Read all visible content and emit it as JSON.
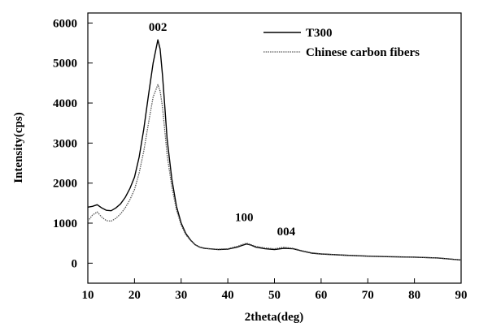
{
  "chart_data": {
    "type": "line",
    "title": "",
    "xlabel": "2theta(deg)",
    "ylabel": "Intensity(cps)",
    "xlim": [
      10,
      90
    ],
    "ylim": [
      -500,
      6250
    ],
    "xticks": [
      10,
      20,
      30,
      40,
      50,
      60,
      70,
      80,
      90
    ],
    "yticks": [
      0,
      1000,
      2000,
      3000,
      4000,
      5000,
      6000
    ],
    "grid": false,
    "legend_position": "top-right",
    "annotations": [
      {
        "text": "002",
        "x": 25.0,
        "y": 5800
      },
      {
        "text": "100",
        "x": 43.5,
        "y": 1050
      },
      {
        "text": "004",
        "x": 52.5,
        "y": 700
      }
    ],
    "series": [
      {
        "name": "T300",
        "color": "#000000",
        "style": "solid",
        "x": [
          10,
          11,
          12,
          13,
          14,
          15,
          16,
          17,
          18,
          19,
          20,
          21,
          22,
          23,
          24,
          25,
          25.5,
          26,
          26.5,
          27,
          28,
          29,
          30,
          31,
          32,
          33,
          34,
          35,
          36,
          37,
          38,
          40,
          42,
          43,
          44,
          45,
          46,
          48,
          50,
          52,
          54,
          56,
          58,
          60,
          65,
          70,
          75,
          80,
          85,
          90
        ],
        "y": [
          1400,
          1420,
          1460,
          1380,
          1320,
          1310,
          1380,
          1480,
          1640,
          1860,
          2150,
          2650,
          3350,
          4200,
          5000,
          5580,
          5350,
          4700,
          3900,
          3100,
          2100,
          1420,
          1000,
          740,
          580,
          460,
          400,
          370,
          360,
          350,
          340,
          350,
          400,
          440,
          480,
          450,
          400,
          360,
          340,
          370,
          360,
          300,
          250,
          230,
          200,
          175,
          160,
          150,
          130,
          80
        ]
      },
      {
        "name": "Chinese carbon fibers",
        "color": "#555555",
        "style": "dotted",
        "x": [
          10,
          11,
          12,
          13,
          14,
          15,
          16,
          17,
          18,
          19,
          20,
          21,
          22,
          23,
          24,
          25,
          25.5,
          26,
          26.5,
          27,
          28,
          29,
          30,
          31,
          32,
          33,
          34,
          35,
          36,
          37,
          38,
          40,
          42,
          43,
          44,
          45,
          46,
          48,
          50,
          52,
          54,
          56,
          58,
          60,
          65,
          70,
          75,
          80,
          85,
          90
        ],
        "y": [
          1050,
          1200,
          1280,
          1150,
          1060,
          1050,
          1120,
          1230,
          1380,
          1580,
          1840,
          2250,
          2800,
          3500,
          4150,
          4460,
          4300,
          3900,
          3300,
          2700,
          1900,
          1330,
          950,
          710,
          570,
          460,
          400,
          380,
          360,
          350,
          350,
          360,
          420,
          460,
          500,
          460,
          420,
          380,
          360,
          400,
          370,
          310,
          260,
          230,
          200,
          180,
          165,
          150,
          130,
          80
        ]
      }
    ]
  }
}
